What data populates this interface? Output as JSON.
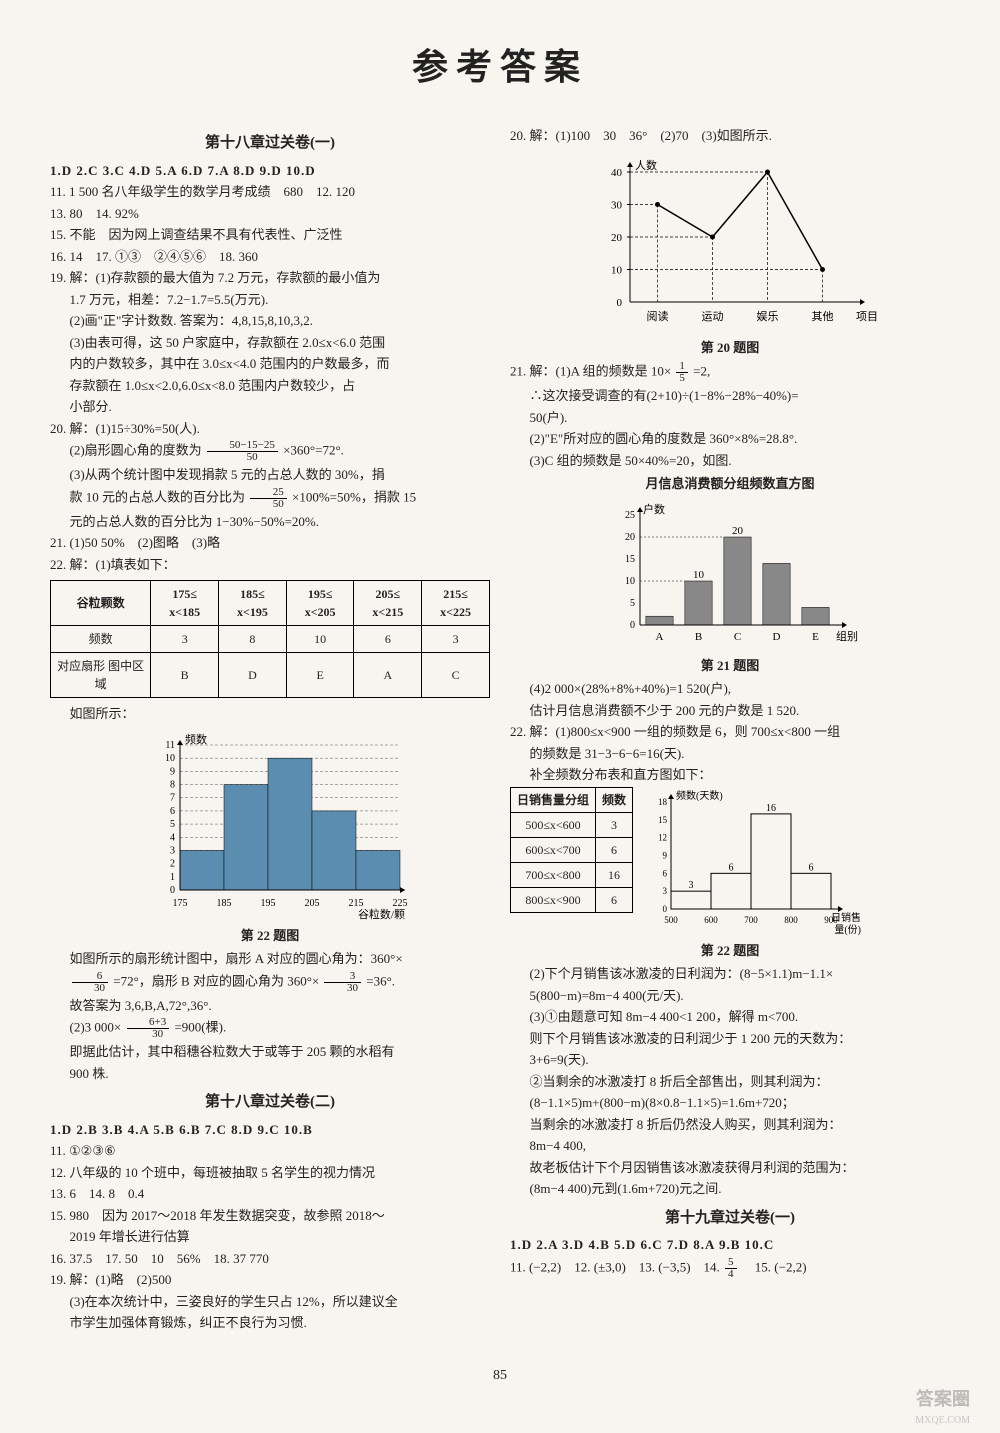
{
  "page_title": "参考答案",
  "page_num": "85",
  "watermark": "答案圈",
  "sub_watermark": "MXQE.COM",
  "left": {
    "section1_title": "第十八章过关卷(一)",
    "s1_mc": "1.D  2.C  3.C  4.D  5.A  6.D  7.A  8.D  9.D  10.D",
    "s1_q11": "11. 1 500 名八年级学生的数学月考成绩　680　12. 120",
    "s1_q13": "13. 80　14. 92%",
    "s1_q15": "15. 不能　因为网上调查结果不具有代表性、广泛性",
    "s1_q16": "16. 14　17. ①③　②④⑤⑥　18. 360",
    "s1_q19_head": "19. 解：(1)存款额的最大值为 7.2 万元，存款额的最小值为",
    "s1_q19_a": "1.7 万元，相差：7.2−1.7=5.5(万元).",
    "s1_q19_b": "(2)画\"正\"字计数数. 答案为：4,8,15,8,10,3,2.",
    "s1_q19_c": "(3)由表可得，这 50 户家庭中，存款额在 2.0≤x<6.0 范围",
    "s1_q19_d": "内的户数较多，其中在 3.0≤x<4.0 范围内的户数最多，而",
    "s1_q19_e": "存款额在 1.0≤x<2.0,6.0≤x<8.0 范围内户数较少，占",
    "s1_q19_f": "小部分.",
    "s1_q20_head": "20. 解：(1)15÷30%=50(人).",
    "s1_q20_b_pre": "(2)扇形圆心角的度数为",
    "s1_q20_b_frac_num": "50−15−25",
    "s1_q20_b_frac_den": "50",
    "s1_q20_b_post": "×360°=72°.",
    "s1_q20_c": "(3)从两个统计图中发现捐款 5 元的占总人数的 30%，捐",
    "s1_q20_d_pre": "款 10 元的占总人数的百分比为",
    "s1_q20_d_frac_num": "25",
    "s1_q20_d_frac_den": "50",
    "s1_q20_d_post": "×100%=50%，捐款 15",
    "s1_q20_e": "元的占总人数的百分比为 1−30%−50%=20%.",
    "s1_q21": "21. (1)50  50%　(2)图略　(3)略",
    "s1_q22_head": "22. 解：(1)填表如下：",
    "table1": {
      "headers": [
        "谷粒颗数",
        "175≤\nx<185",
        "185≤\nx<195",
        "195≤\nx<205",
        "205≤\nx<215",
        "215≤\nx<225"
      ],
      "row1": [
        "频数",
        "3",
        "8",
        "10",
        "6",
        "3"
      ],
      "row2": [
        "对应扇形\n图中区域",
        "B",
        "D",
        "E",
        "A",
        "C"
      ]
    },
    "s1_q22_chart_intro": "如图所示：",
    "chart1": {
      "ylabel": "频数",
      "xlabel": "谷粒数/颗",
      "categories": [
        "175",
        "185",
        "195",
        "205",
        "215",
        "225"
      ],
      "values": [
        3,
        8,
        10,
        6,
        3
      ],
      "ylim": 11,
      "bar_color": "#5a8db0",
      "grid_color": "#555"
    },
    "chart1_title": "第 22 题图",
    "s1_q22_a_pre": "如图所示的扇形统计图中，扇形 A 对应的圆心角为：360°×",
    "s1_q22_a_f1n": "6",
    "s1_q22_a_f1d": "30",
    "s1_q22_a_mid": "=72°，扇形 B 对应的圆心角为 360°×",
    "s1_q22_a_f2n": "3",
    "s1_q22_a_f2d": "30",
    "s1_q22_a_post": "=36°.",
    "s1_q22_b": "故答案为 3,6,B,A,72°,36°.",
    "s1_q22_c_pre": "(2)3 000×",
    "s1_q22_c_fn": "6+3",
    "s1_q22_c_fd": "30",
    "s1_q22_c_post": "=900(棵).",
    "s1_q22_d": "即据此估计，其中稻穗谷粒数大于或等于 205 颗的水稻有",
    "s1_q22_e": "900 株.",
    "section2_title": "第十八章过关卷(二)",
    "s2_mc": "1.D  2.B  3.B  4.A  5.B  6.B  7.C  8.D  9.C  10.B",
    "s2_q11": "11. ①②③⑥",
    "s2_q12": "12. 八年级的 10 个班中，每班被抽取 5 名学生的视力情况",
    "s2_q13": "13. 6　14. 8　0.4",
    "s2_q15": "15. 980　因为 2017～2018 年发生数据突变，故参照 2018～",
    "s2_q15b": "2019 年增长进行估算",
    "s2_q16": "16. 37.5　17. 50　10　56%　18. 37 770",
    "s2_q19": "19. 解：(1)略　(2)500",
    "s2_q19b": "(3)在本次统计中，三姿良好的学生只占 12%，所以建议全",
    "s2_q19c": "市学生加强体育锻炼，纠正不良行为习惯."
  },
  "right": {
    "r_q20": "20. 解：(1)100　30　36°　(2)70　(3)如图所示.",
    "chart2": {
      "ylabel": "人数",
      "xlabel": "项目",
      "categories": [
        "阅读",
        "运动",
        "娱乐",
        "其他"
      ],
      "values": [
        30,
        20,
        40,
        10
      ],
      "ylim": 40,
      "line_color": "#000"
    },
    "chart2_title": "第 20 题图",
    "r_q21_pre": "21. 解：(1)A 组的频数是 10×",
    "r_q21_fn": "1",
    "r_q21_fd": "5",
    "r_q21_post": "=2,",
    "r_q21_b": "∴这次接受调查的有(2+10)÷(1−8%−28%−40%)=",
    "r_q21_c": "50(户).",
    "r_q21_d": "(2)\"E\"所对应的圆心角的度数是 360°×8%=28.8°.",
    "r_q21_e": "(3)C 组的频数是 50×40%=20，如图.",
    "chart3_title_top": "月信息消费额分组频数直方图",
    "chart3": {
      "ylabel": "户数",
      "categories": [
        "A",
        "B",
        "C",
        "D",
        "E"
      ],
      "values": [
        2,
        10,
        20,
        14,
        4
      ],
      "labels": [
        "",
        "10",
        "20",
        "",
        ""
      ],
      "xlabel": "组别",
      "ylim": 25,
      "bar_color": "#888"
    },
    "chart3_title": "第 21 题图",
    "r_q21_f": "(4)2 000×(28%+8%+40%)=1 520(户),",
    "r_q21_g": "估计月信息消费额不少于 200 元的户数是 1 520.",
    "r_q22": "22. 解：(1)800≤x<900 一组的频数是 6，则 700≤x<800 一组",
    "r_q22_b": "的频数是 31−3−6−6=16(天).",
    "r_q22_c": "补全频数分布表和直方图如下：",
    "table2": {
      "headers": [
        "日销售量分组",
        "频数"
      ],
      "rows": [
        [
          "500≤x<600",
          "3"
        ],
        [
          "600≤x<700",
          "6"
        ],
        [
          "700≤x<800",
          "16"
        ],
        [
          "800≤x<900",
          "6"
        ]
      ]
    },
    "chart4": {
      "ylabel": "频数(天数)",
      "xlabel_a": "日销售",
      "xlabel_b": "量(份)",
      "categories": [
        "500",
        "600",
        "700",
        "800",
        "900"
      ],
      "values": [
        3,
        6,
        16,
        6
      ],
      "labels": [
        "3",
        "6",
        "16",
        "6"
      ],
      "ylim": 18
    },
    "chart4_title": "第 22 题图",
    "r_q22_d": "(2)下个月销售该冰激凌的日利润为：(8−5×1.1)m−1.1×",
    "r_q22_e": "5(800−m)=8m−4 400(元/天).",
    "r_q22_f": "(3)①由题意可知 8m−4 400<1 200，解得 m<700.",
    "r_q22_g": "则下个月销售该冰激凌的日利润少于 1 200 元的天数为：",
    "r_q22_h": "3+6=9(天).",
    "r_q22_i": "②当剩余的冰激凌打 8 折后全部售出，则其利润为：",
    "r_q22_j": "(8−1.1×5)m+(800−m)(8×0.8−1.1×5)=1.6m+720；",
    "r_q22_k": "当剩余的冰激凌打 8 折后仍然没人购买，则其利润为：",
    "r_q22_l": "8m−4 400,",
    "r_q22_m": "故老板估计下个月因销售该冰激凌获得月利润的范围为：",
    "r_q22_n": "(8m−4 400)元到(1.6m+720)元之间.",
    "section3_title": "第十九章过关卷(一)",
    "s3_mc": "1.D  2.A  3.D  4.B  5.D  6.C  7.D  8.A  9.B  10.C",
    "s3_q11_pre": "11. (−2,2)　12. (±3,0)　13. (−3,5)　14. ",
    "s3_q11_fn": "5",
    "s3_q11_fd": "4",
    "s3_q11_post": "　15. (−2,2)"
  }
}
